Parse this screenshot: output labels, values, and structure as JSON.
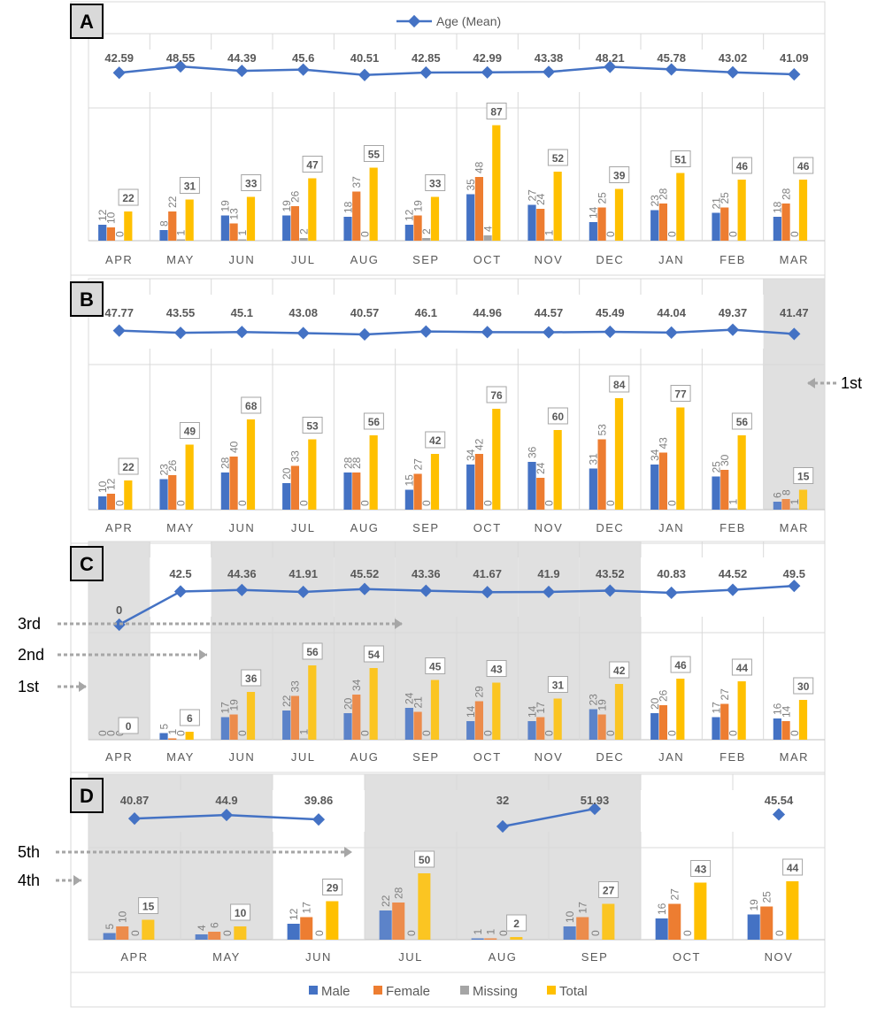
{
  "legend_top": {
    "label": "Age (Mean)"
  },
  "legend_bottom": [
    {
      "key": "male",
      "label": "Male"
    },
    {
      "key": "female",
      "label": "Female"
    },
    {
      "key": "missing",
      "label": "Missing"
    },
    {
      "key": "total",
      "label": "Total"
    }
  ],
  "colors": {
    "age": "#4472C4",
    "male": "#4472C4",
    "female": "#ED7D31",
    "missing": "#A5A5A5",
    "total": "#FFC000",
    "shade": "#E0E0E0",
    "arrow": "#A6A6A6",
    "grid": "#D9D9D9"
  },
  "chart_data": [
    {
      "type": "bar",
      "panel": "A",
      "categories": [
        "APR",
        "MAY",
        "JUN",
        "JUL",
        "AUG",
        "SEP",
        "OCT",
        "NOV",
        "DEC",
        "JAN",
        "FEB",
        "MAR"
      ],
      "age_mean": [
        42.59,
        48.55,
        44.39,
        45.6,
        40.51,
        42.85,
        42.99,
        43.38,
        48.21,
        45.78,
        43.02,
        41.09
      ],
      "series": [
        {
          "name": "Male",
          "key": "male",
          "values": [
            12,
            8,
            19,
            19,
            18,
            12,
            35,
            27,
            14,
            23,
            21,
            18
          ]
        },
        {
          "name": "Female",
          "key": "female",
          "values": [
            10,
            22,
            13,
            26,
            37,
            19,
            48,
            24,
            25,
            28,
            25,
            28
          ]
        },
        {
          "name": "Missing",
          "key": "missing",
          "values": [
            0,
            1,
            1,
            2,
            0,
            2,
            4,
            1,
            0,
            0,
            0,
            0
          ]
        },
        {
          "name": "Total",
          "key": "total",
          "values": [
            22,
            31,
            33,
            47,
            55,
            33,
            87,
            52,
            39,
            51,
            46,
            46
          ]
        }
      ],
      "shaded": [],
      "annotations": []
    },
    {
      "type": "bar",
      "panel": "B",
      "categories": [
        "APR",
        "MAY",
        "JUN",
        "JUL",
        "AUG",
        "SEP",
        "OCT",
        "NOV",
        "DEC",
        "JAN",
        "FEB",
        "MAR"
      ],
      "age_mean": [
        47.77,
        43.55,
        45.1,
        43.08,
        40.57,
        46.1,
        44.96,
        44.57,
        45.49,
        44.04,
        49.37,
        41.47
      ],
      "series": [
        {
          "name": "Male",
          "key": "male",
          "values": [
            10,
            23,
            28,
            20,
            28,
            15,
            34,
            36,
            31,
            34,
            25,
            6
          ]
        },
        {
          "name": "Female",
          "key": "female",
          "values": [
            12,
            26,
            40,
            33,
            28,
            27,
            42,
            24,
            53,
            43,
            30,
            8
          ]
        },
        {
          "name": "Missing",
          "key": "missing",
          "values": [
            0,
            0,
            0,
            0,
            0,
            0,
            0,
            0,
            0,
            0,
            1,
            1
          ]
        },
        {
          "name": "Total",
          "key": "total",
          "values": [
            22,
            49,
            68,
            53,
            56,
            42,
            76,
            60,
            84,
            77,
            56,
            15
          ]
        }
      ],
      "shaded": [
        11
      ],
      "annotations": [
        {
          "label": "1st",
          "side": "right"
        }
      ]
    },
    {
      "type": "bar",
      "panel": "C",
      "categories": [
        "APR",
        "MAY",
        "JUN",
        "JUL",
        "AUG",
        "SEP",
        "OCT",
        "NOV",
        "DEC",
        "JAN",
        "FEB",
        "MAR"
      ],
      "age_mean": [
        0,
        42.5,
        44.36,
        41.91,
        45.52,
        43.36,
        41.67,
        41.9,
        43.52,
        40.83,
        44.52,
        49.5
      ],
      "series": [
        {
          "name": "Male",
          "key": "male",
          "values": [
            0,
            5,
            17,
            22,
            20,
            24,
            14,
            14,
            23,
            20,
            17,
            16
          ]
        },
        {
          "name": "Female",
          "key": "female",
          "values": [
            0,
            1,
            19,
            33,
            34,
            21,
            29,
            17,
            19,
            26,
            27,
            14
          ]
        },
        {
          "name": "Missing",
          "key": "missing",
          "values": [
            0,
            0,
            0,
            1,
            0,
            0,
            0,
            0,
            0,
            0,
            0,
            0
          ]
        },
        {
          "name": "Total",
          "key": "total",
          "values": [
            0,
            6,
            36,
            56,
            54,
            45,
            43,
            31,
            42,
            46,
            44,
            30
          ]
        }
      ],
      "shaded": [
        0,
        2,
        3,
        4,
        5,
        6,
        7,
        8
      ],
      "annotations": [
        {
          "label": "3rd",
          "side": "left"
        },
        {
          "label": "2nd",
          "side": "left"
        },
        {
          "label": "1st",
          "side": "left"
        }
      ]
    },
    {
      "type": "bar",
      "panel": "D",
      "categories": [
        "APR",
        "MAY",
        "JUN",
        "JUL",
        "AUG",
        "SEP",
        "OCT",
        "NOV"
      ],
      "age_mean": [
        40.87,
        44.9,
        39.86,
        null,
        32,
        51.93,
        null,
        45.54
      ],
      "series": [
        {
          "name": "Male",
          "key": "male",
          "values": [
            5,
            4,
            12,
            22,
            1,
            10,
            16,
            19
          ]
        },
        {
          "name": "Female",
          "key": "female",
          "values": [
            10,
            6,
            17,
            28,
            1,
            17,
            27,
            25
          ]
        },
        {
          "name": "Missing",
          "key": "missing",
          "values": [
            0,
            0,
            0,
            0,
            0,
            0,
            0,
            0
          ]
        },
        {
          "name": "Total",
          "key": "total",
          "values": [
            15,
            10,
            29,
            50,
            2,
            27,
            43,
            44
          ]
        }
      ],
      "shaded": [
        0,
        1,
        3,
        4,
        5
      ],
      "annotations": [
        {
          "label": "5th",
          "side": "left"
        },
        {
          "label": "4th",
          "side": "left"
        }
      ]
    }
  ]
}
